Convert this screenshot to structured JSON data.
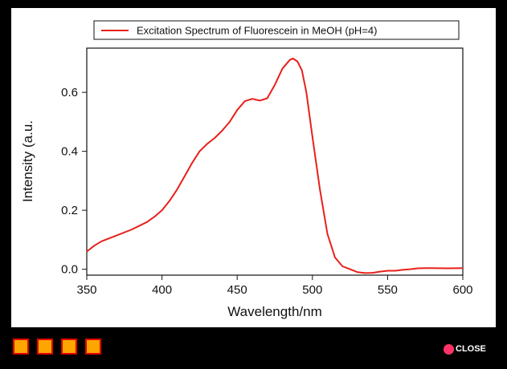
{
  "chart_data": {
    "type": "line",
    "title": "",
    "xlabel": "Wavelength/nm",
    "ylabel": "Intensity (a.u.",
    "xlim": [
      350,
      600
    ],
    "ylim": [
      -0.02,
      0.75
    ],
    "xticks": [
      350,
      400,
      450,
      500,
      550,
      600
    ],
    "yticks": [
      0.0,
      0.2,
      0.4,
      0.6
    ],
    "yticks_text": [
      "0.0",
      "0.2",
      "0.4",
      "0.6"
    ],
    "legend_position": "top",
    "grid": false,
    "series": [
      {
        "name": "Excitation Spectrum of Fluorescein in MeOH (pH=4)",
        "color": "#e8201a",
        "x": [
          350,
          355,
          360,
          370,
          380,
          390,
          395,
          400,
          405,
          410,
          415,
          420,
          425,
          430,
          435,
          440,
          445,
          450,
          455,
          460,
          465,
          470,
          475,
          480,
          485,
          487,
          490,
          493,
          496,
          500,
          505,
          510,
          515,
          520,
          525,
          530,
          535,
          540,
          545,
          550,
          555,
          560,
          565,
          570,
          575,
          580,
          590,
          600
        ],
        "y": [
          0.06,
          0.08,
          0.095,
          0.115,
          0.135,
          0.16,
          0.178,
          0.2,
          0.232,
          0.27,
          0.315,
          0.36,
          0.4,
          0.425,
          0.445,
          0.47,
          0.5,
          0.54,
          0.57,
          0.578,
          0.572,
          0.58,
          0.625,
          0.68,
          0.71,
          0.715,
          0.705,
          0.675,
          0.6,
          0.45,
          0.27,
          0.12,
          0.04,
          0.01,
          0.0,
          -0.01,
          -0.013,
          -0.012,
          -0.008,
          -0.005,
          -0.005,
          -0.002,
          0.0,
          0.003,
          0.004,
          0.004,
          0.003,
          0.004
        ]
      }
    ]
  },
  "footer": {
    "squares": [
      "slide-1",
      "slide-2",
      "slide-3",
      "slide-4"
    ],
    "square_color": "#ffa500",
    "square_border_color": "#e00000",
    "close_label": "CLOSE",
    "close_dot_color": "#ff3366"
  }
}
